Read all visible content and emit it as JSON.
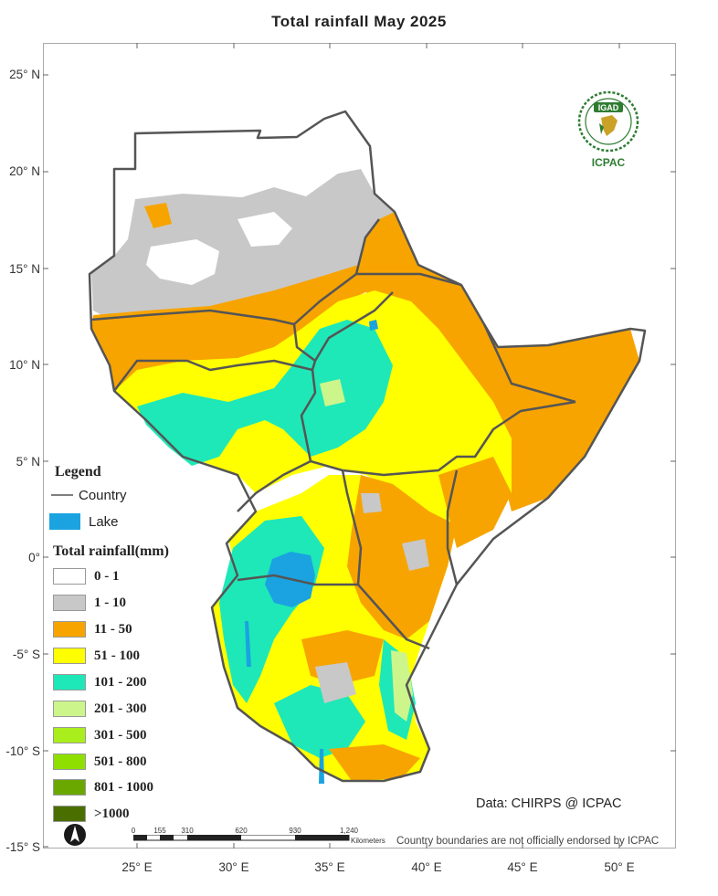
{
  "title": "Total rainfall May  2025",
  "axes": {
    "lat_labels": [
      "25° N",
      "20° N",
      "15° N",
      "10° N",
      "5° N",
      "0°",
      "-5° S",
      "-10° S",
      "-15° S"
    ],
    "lon_labels": [
      "25° E",
      "30° E",
      "35° E",
      "40° E",
      "45° E",
      "50° E"
    ]
  },
  "legend": {
    "title": "Legend",
    "country_label": "Country",
    "lake_label": "Lake",
    "rainfall_title": "Total rainfall(mm)",
    "classes": [
      {
        "label": "0 - 1",
        "color": "#ffffff"
      },
      {
        "label": "1 - 10",
        "color": "#c8c8c8"
      },
      {
        "label": "11 - 50",
        "color": "#f7a400"
      },
      {
        "label": "51 - 100",
        "color": "#ffff00"
      },
      {
        "label": "101 - 200",
        "color": "#1ee8b8"
      },
      {
        "label": "201 - 300",
        "color": "#ccf58c"
      },
      {
        "label": "301 - 500",
        "color": "#aaee1e"
      },
      {
        "label": "501 - 800",
        "color": "#8fe000"
      },
      {
        "label": "801 - 1000",
        "color": "#6aa800"
      },
      {
        "label": ">1000",
        "color": "#4a6e00"
      }
    ],
    "lake_color": "#1aa3e0",
    "country_color": "#555555"
  },
  "credit": "Data: CHIRPS @ ICPAC",
  "disclaimer": "Country boundaries are not officially endorsed by ICPAC",
  "logo": {
    "top_text": "IGAD",
    "caption": "ICPAC"
  },
  "scale": {
    "ticks": [
      "0",
      "155",
      "310",
      "620",
      "930",
      "1,240"
    ],
    "unit": "Kilometers"
  },
  "north_icon": "north-arrow-icon"
}
